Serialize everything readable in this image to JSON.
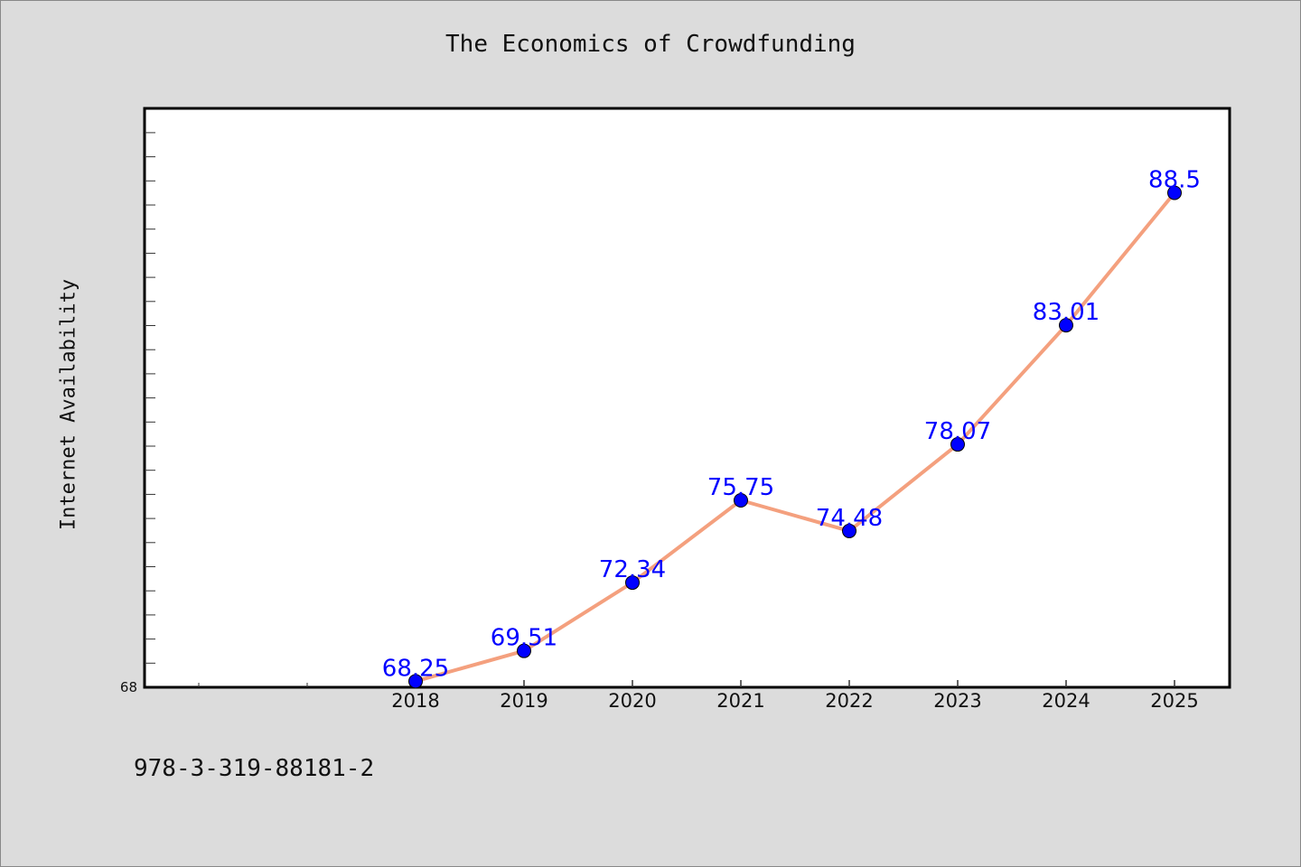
{
  "chart_data": {
    "type": "line",
    "title": "The Economics of Crowdfunding",
    "xlabel": "",
    "ylabel": "Internet Availability",
    "categories": [
      "2018",
      "2019",
      "2020",
      "2021",
      "2022",
      "2023",
      "2024",
      "2025"
    ],
    "series": [
      {
        "values": [
          68.25,
          69.51,
          72.34,
          75.75,
          74.48,
          78.07,
          83.01,
          88.5
        ]
      }
    ],
    "data_labels": [
      "68.25",
      "69.51",
      "72.34",
      "75.75",
      "74.48",
      "78.07",
      "83.01",
      "88.5"
    ],
    "ylim": [
      68,
      92
    ],
    "ytick_label": "68",
    "grid": false,
    "legend": "none",
    "colors": {
      "line": "#f4a07e",
      "marker": "#0000ff",
      "label": "#0000ff",
      "background": "#dcdcdc",
      "plot_background": "#ffffff"
    }
  },
  "footer_text": "978-3-319-88181-2"
}
